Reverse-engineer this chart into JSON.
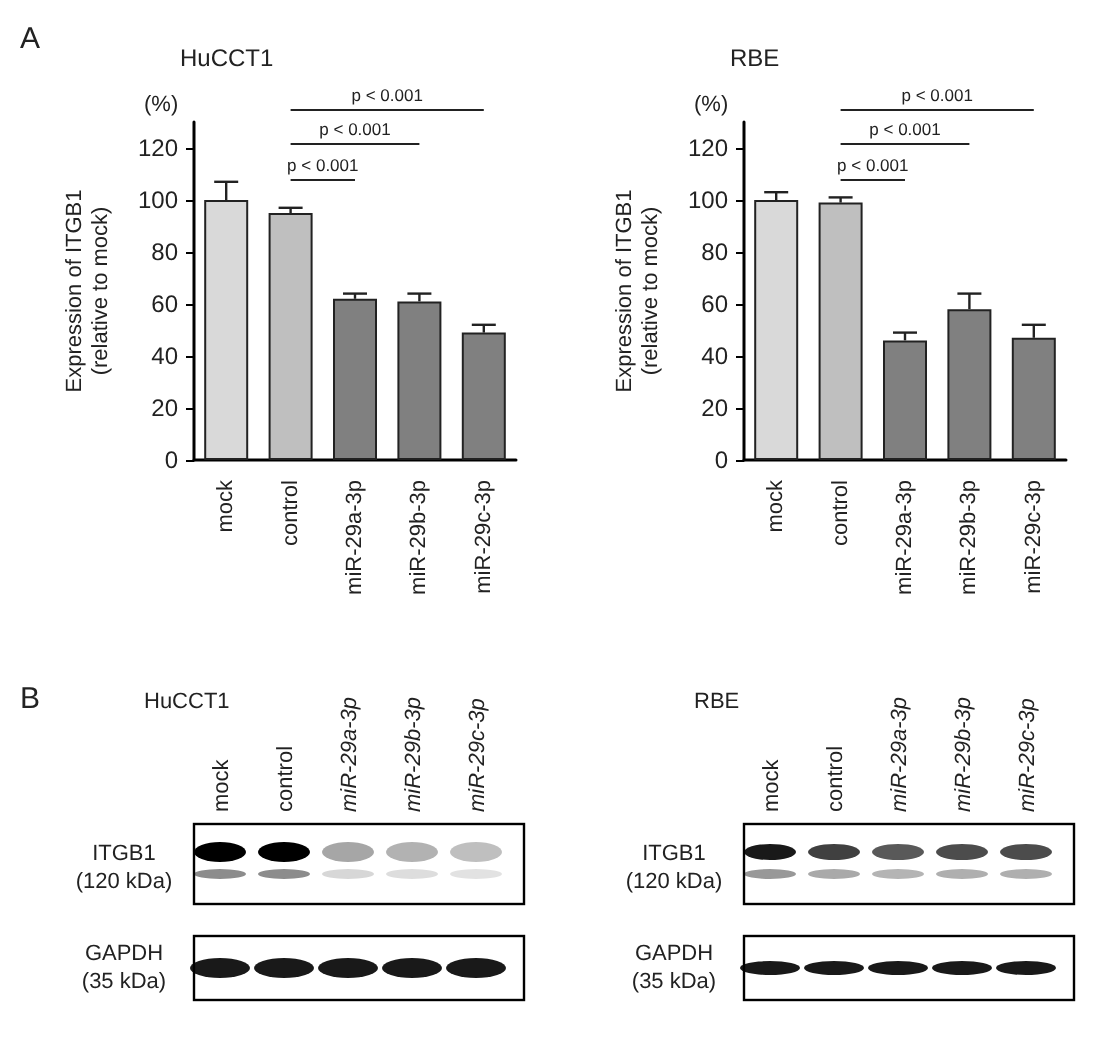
{
  "chart_data": [
    {
      "type": "bar",
      "title": "HuCCT1",
      "ylabel": "Expression of ITGB1\n(relative to mock)",
      "categories": [
        "mock",
        "control",
        "miR-29a-3p",
        "miR-29b-3p",
        "miR-29c-3p"
      ],
      "values": [
        100,
        95,
        62,
        61,
        49
      ],
      "colors": [
        "#d9d9d9",
        "#bfbfbf",
        "#808080",
        "#808080",
        "#808080"
      ],
      "errors": [
        [
          100,
          107
        ],
        [
          95,
          97
        ],
        [
          62,
          64
        ],
        [
          61,
          64
        ],
        [
          49,
          52
        ]
      ],
      "ylim": [
        0,
        130
      ],
      "yticks": [
        0,
        20,
        40,
        60,
        80,
        100,
        120
      ],
      "annotations": [
        "(%)",
        "p < 0.001",
        "p < 0.001",
        "p < 0.001",
        "A"
      ]
    },
    {
      "type": "bar",
      "title": "RBE",
      "ylabel": "Expression of ITGB1\n(relative to mock)",
      "categories": [
        "mock",
        "control",
        "miR-29a-3p",
        "miR-29b-3p",
        "miR-29c-3p"
      ],
      "values": [
        100,
        99,
        46,
        58,
        47
      ],
      "colors": [
        "#d9d9d9",
        "#bfbfbf",
        "#808080",
        "#808080",
        "#808080"
      ],
      "errors": [
        [
          100,
          103
        ],
        [
          99,
          101
        ],
        [
          46,
          49
        ],
        [
          58,
          64
        ],
        [
          47,
          52
        ]
      ],
      "ylim": [
        0,
        130
      ],
      "yticks": [
        0,
        20,
        40,
        60,
        80,
        100,
        120
      ],
      "annotations": [
        "(%)",
        "p < 0.001",
        "p < 0.001",
        "p < 0.001"
      ]
    },
    {
      "type": "other",
      "title": "HuCCT1",
      "annotations": [
        "mock",
        "control",
        "miR-29a-3p",
        "miR-29b-3p",
        "miR-29c-3p",
        "ITGB1",
        "(120 kDa)",
        "GAPDH",
        "(35 kDa)",
        "B"
      ]
    },
    {
      "type": "other",
      "title": "RBE",
      "annotations": [
        "mock",
        "control",
        "miR-29a-3p",
        "miR-29b-3p",
        "miR-29c-3p",
        "ITGB1",
        "(120 kDa)",
        "GAPDH",
        "(35 kDa)"
      ]
    }
  ]
}
